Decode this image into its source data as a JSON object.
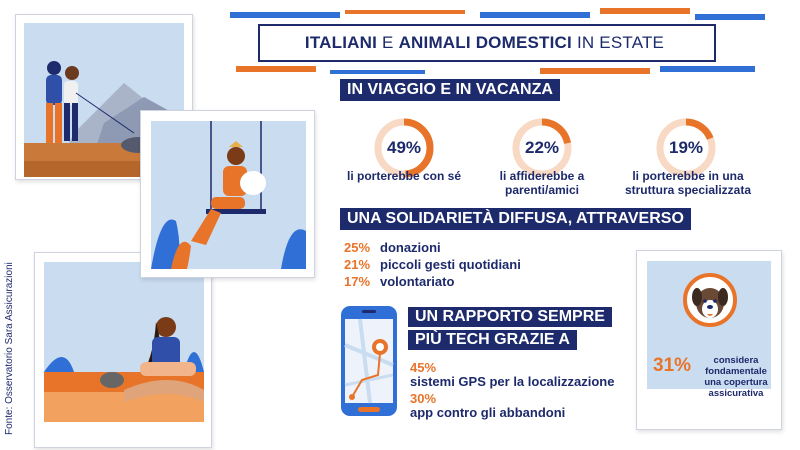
{
  "title": {
    "part1": "ITALIANI",
    "part2": "E",
    "part3": "ANIMALI DOMESTICI",
    "part4": "IN ESTATE"
  },
  "colors": {
    "navy": "#1d2a6b",
    "orange": "#e8742a",
    "light_orange": "#f7d9c4",
    "light_blue": "#c9dcf0",
    "accent_blue": "#2f6fd6"
  },
  "travel": {
    "heading": "IN VIAGGIO E IN VACANZA",
    "stats": [
      {
        "value": 49,
        "label": "49%",
        "caption": "li porterebbe con sé"
      },
      {
        "value": 22,
        "label": "22%",
        "caption": "li affiderebbe a parenti/amici"
      },
      {
        "value": 19,
        "label": "19%",
        "caption": "li porterebbe in una struttura specializzata"
      }
    ]
  },
  "solidarity": {
    "heading": "UNA SOLIDARIETÀ DIFFUSA, ATTRAVERSO",
    "items": [
      {
        "value": "25%",
        "label": "donazioni"
      },
      {
        "value": "21%",
        "label": "piccoli gesti quotidiani"
      },
      {
        "value": "17%",
        "label": "volontariato"
      }
    ]
  },
  "tech": {
    "heading_line1": "UN RAPPORTO SEMPRE",
    "heading_line2": "PIÙ TECH GRAZIE A",
    "items": [
      {
        "value": "45%",
        "label": "sistemi GPS per la localizzazione"
      },
      {
        "value": "30%",
        "label": "app contro gli abbandoni"
      }
    ]
  },
  "insurance": {
    "value": "31%",
    "caption": "considera fondamentale una copertura assicurativa",
    "icon": "dog-icon"
  },
  "source": "Fonte: Osservatorio Sara Assicurazioni"
}
